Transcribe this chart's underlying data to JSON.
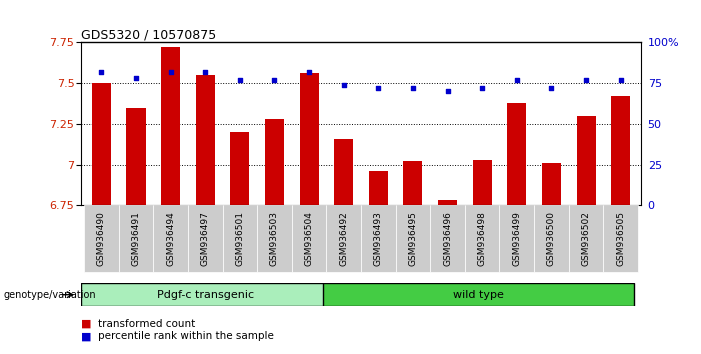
{
  "title": "GDS5320 / 10570875",
  "samples": [
    "GSM936490",
    "GSM936491",
    "GSM936494",
    "GSM936497",
    "GSM936501",
    "GSM936503",
    "GSM936504",
    "GSM936492",
    "GSM936493",
    "GSM936495",
    "GSM936496",
    "GSM936498",
    "GSM936499",
    "GSM936500",
    "GSM936502",
    "GSM936505"
  ],
  "bar_values": [
    7.5,
    7.35,
    7.72,
    7.55,
    7.2,
    7.28,
    7.56,
    7.16,
    6.96,
    7.02,
    6.78,
    7.03,
    7.38,
    7.01,
    7.3,
    7.42
  ],
  "dot_values": [
    82,
    78,
    82,
    82,
    77,
    77,
    82,
    74,
    72,
    72,
    70,
    72,
    77,
    72,
    77,
    77
  ],
  "ylim_left": [
    6.75,
    7.75
  ],
  "ylim_right": [
    0,
    100
  ],
  "yticks_left": [
    6.75,
    7.0,
    7.25,
    7.5,
    7.75
  ],
  "ytick_labels_left": [
    "6.75",
    "7",
    "7.25",
    "7.5",
    "7.75"
  ],
  "yticks_right": [
    0,
    25,
    50,
    75,
    100
  ],
  "ytick_labels_right": [
    "0",
    "25",
    "50",
    "75",
    "100%"
  ],
  "group1_label": "Pdgf-c transgenic",
  "group2_label": "wild type",
  "group1_count": 7,
  "group2_count": 9,
  "bar_color": "#cc0000",
  "dot_color": "#0000cc",
  "group1_color": "#aaeebb",
  "group2_color": "#44cc44",
  "legend_bar_label": "transformed count",
  "legend_dot_label": "percentile rank within the sample",
  "genotype_label": "genotype/variation",
  "background_color": "#ffffff",
  "tick_label_color_left": "#cc2200",
  "tick_label_color_right": "#0000cc",
  "sample_bg_color": "#cccccc"
}
